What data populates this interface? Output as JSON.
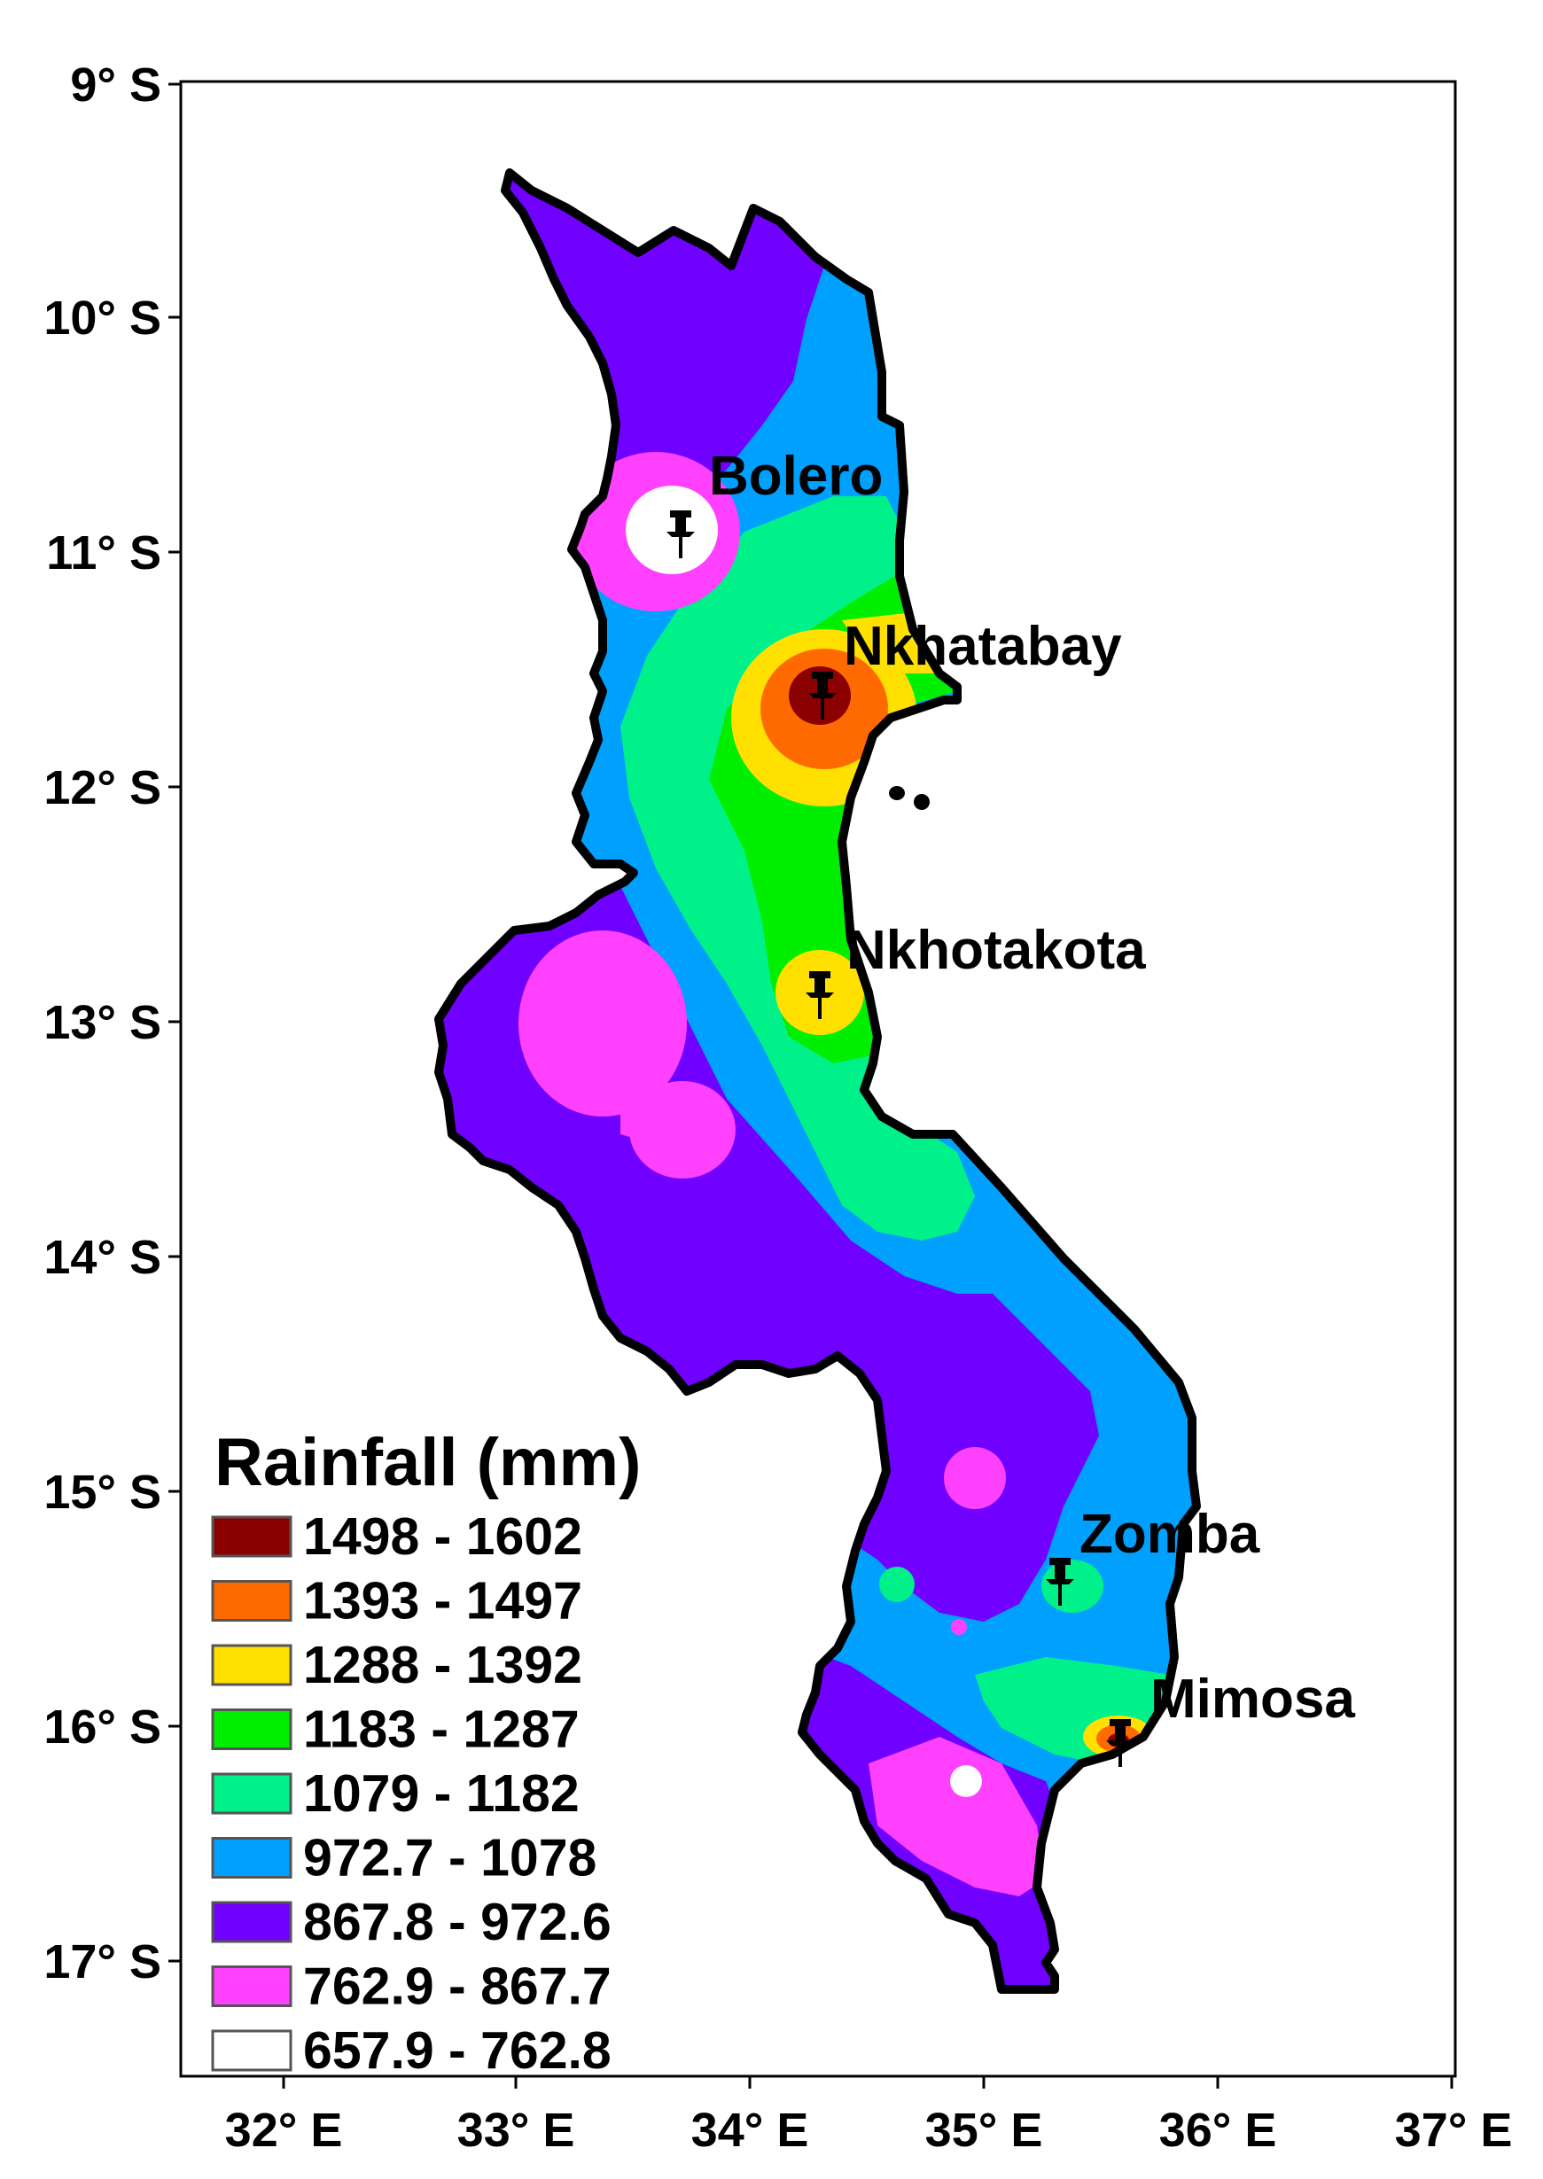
{
  "map": {
    "x_ticks": [
      "32° E",
      "33° E",
      "34° E",
      "35° E",
      "36° E",
      "37° E"
    ],
    "y_ticks": [
      "9° S",
      "10° S",
      "11° S",
      "12° S",
      "13° S",
      "14° S",
      "15° S",
      "16° S",
      "17° S"
    ],
    "places": [
      {
        "name": "Bolero",
        "color": "#d0101c"
      },
      {
        "name": "Nkhatabay",
        "color": "#000000"
      },
      {
        "name": "Nkhotakota",
        "color": "#000000"
      },
      {
        "name": "Zomba",
        "color": "#000000"
      },
      {
        "name": "Mimosa",
        "color": "#000000"
      }
    ],
    "marker_icon": "pushpin-icon"
  },
  "legend": {
    "title": "Rainfall (mm)",
    "classes": [
      {
        "label": "1498 - 1602",
        "color": "#8b0000"
      },
      {
        "label": "1393 - 1497",
        "color": "#ff6a00"
      },
      {
        "label": "1288 - 1392",
        "color": "#ffe000"
      },
      {
        "label": "1183 - 1287",
        "color": "#00ee00"
      },
      {
        "label": "1079 - 1182",
        "color": "#00f08a"
      },
      {
        "label": "972.7 - 1078",
        "color": "#00a0ff"
      },
      {
        "label": "867.8 - 972.6",
        "color": "#7000ff"
      },
      {
        "label": "762.9 - 867.7",
        "color": "#ff40ff"
      },
      {
        "label": "657.9 - 762.8",
        "color": "#ffffff"
      }
    ]
  }
}
